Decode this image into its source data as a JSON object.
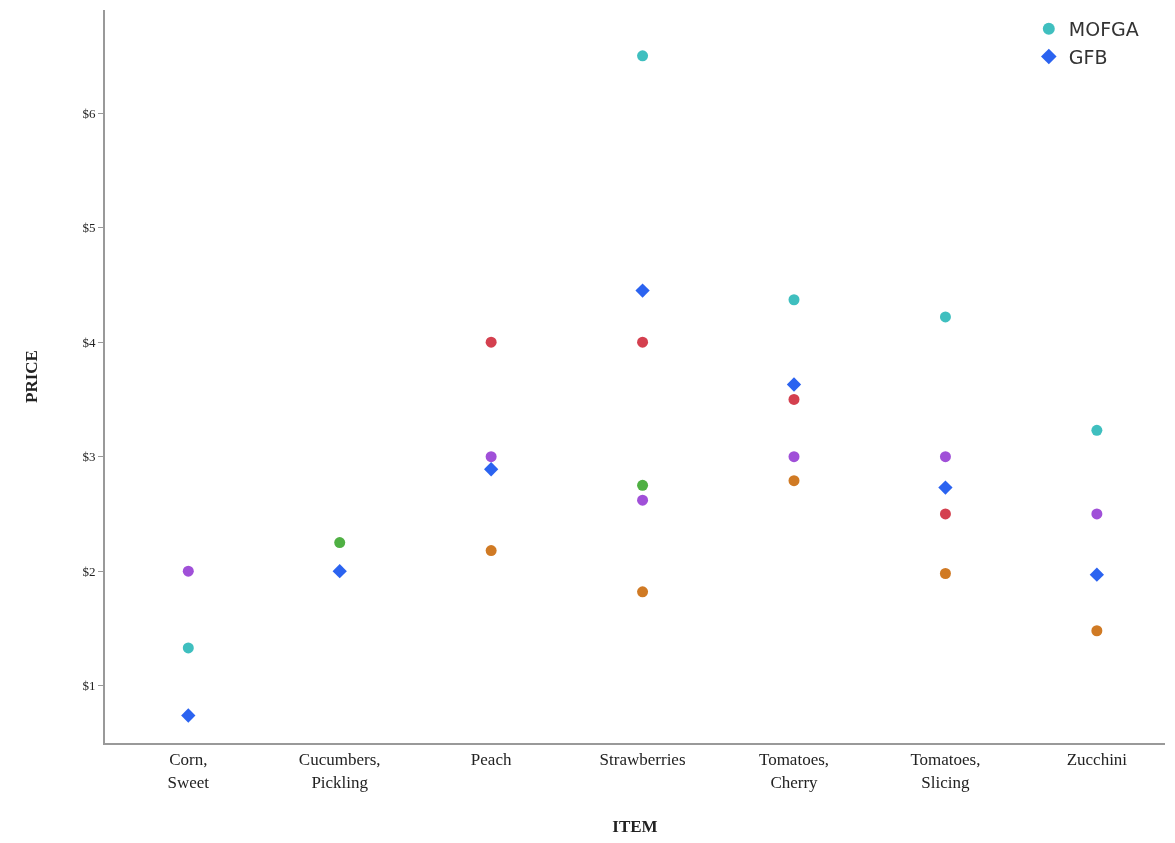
{
  "chart_data": {
    "type": "scatter",
    "xlabel": "ITEM",
    "ylabel": "PRICE",
    "categories": [
      "Corn, Sweet",
      "Cucumbers, Pickling",
      "Peach",
      "Strawberries",
      "Tomatoes, Cherry",
      "Tomatoes, Slicing",
      "Zucchini"
    ],
    "series": [
      {
        "name": "MOFGA",
        "color": "#3fbfbf",
        "marker": "circle",
        "values": [
          1.33,
          null,
          null,
          6.5,
          4.37,
          4.22,
          3.23
        ]
      },
      {
        "color": "#d4404f",
        "marker": "circle",
        "values": [
          null,
          null,
          4.0,
          4.0,
          3.5,
          2.5,
          null
        ]
      },
      {
        "color": "#4fb043",
        "marker": "circle",
        "values": [
          null,
          2.25,
          null,
          2.75,
          null,
          null,
          null
        ]
      },
      {
        "color": "#a050d8",
        "marker": "circle",
        "values": [
          2.0,
          null,
          3.0,
          2.62,
          3.0,
          3.0,
          2.5
        ]
      },
      {
        "color": "#d07a24",
        "marker": "circle",
        "values": [
          null,
          null,
          2.18,
          1.82,
          2.79,
          1.98,
          1.48
        ]
      },
      {
        "name": "GFB",
        "color": "#2b63f0",
        "marker": "diamond",
        "values": [
          0.74,
          2.0,
          2.89,
          4.45,
          3.63,
          2.73,
          1.97
        ]
      }
    ],
    "ylim": [
      0.5,
      6.9
    ],
    "yticks": [
      {
        "value": 1,
        "label": "$1"
      },
      {
        "value": 2,
        "label": "$2"
      },
      {
        "value": 3,
        "label": "$3"
      },
      {
        "value": 4,
        "label": "$4"
      },
      {
        "value": 5,
        "label": "$5"
      },
      {
        "value": 6,
        "label": "$6"
      }
    ],
    "grid": false,
    "legend": "top right"
  }
}
